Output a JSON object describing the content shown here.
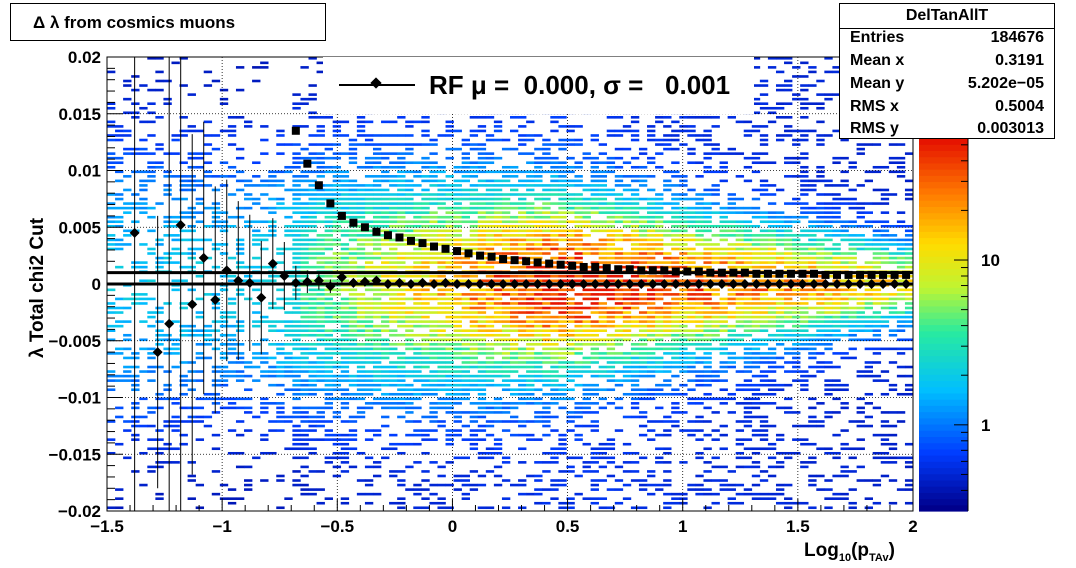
{
  "title": "Δ λ from cosmics muons",
  "stats": {
    "name": "DelTanAllT",
    "rows": [
      {
        "key": "Entries",
        "value": "184676"
      },
      {
        "key": "Mean x",
        "value": "0.3191"
      },
      {
        "key": "Mean y",
        "value": "5.202e−05"
      },
      {
        "key": "RMS x",
        "value": "0.5004"
      },
      {
        "key": "RMS y",
        "value": "0.003013"
      }
    ]
  },
  "legend": {
    "label": "RF μ =  0.000, σ =   0.001"
  },
  "axes": {
    "ytitle": "λ  Total chi2 Cut",
    "xtitle_main": "Log",
    "xtitle_sub1": "10",
    "xtitle_paren": "(p",
    "xtitle_sub2": "TAv",
    "xtitle_close": ")"
  },
  "chart_data": {
    "type": "heatmap",
    "title": "Δ λ from cosmics muons",
    "xlabel": "Log10(pTAv)",
    "ylabel": "λ  Total chi2 Cut",
    "xlim": [
      -1.5,
      2
    ],
    "ylim": [
      -0.02,
      0.02
    ],
    "xticks": [
      -1.5,
      -1,
      -0.5,
      0,
      0.5,
      1,
      1.5,
      2
    ],
    "xtick_labels": [
      "−1.5",
      "−1",
      "−0.5",
      "0",
      "0.5",
      "1",
      "1.5",
      "2"
    ],
    "yticks": [
      -0.02,
      -0.015,
      -0.01,
      -0.005,
      0,
      0.005,
      0.01,
      0.015,
      0.02
    ],
    "ytick_labels": [
      "−0.02",
      "−0.015",
      "−0.01",
      "−0.005",
      "0",
      "0.005",
      "0.01",
      "0.015",
      "0.02"
    ],
    "color_scale": "log",
    "colorbar_ticks": [
      1,
      10
    ],
    "colorbar_labels": [
      "1",
      "10"
    ],
    "grid": true,
    "series": [
      {
        "name": "RF",
        "marker": "diamond",
        "x": [
          -1.38,
          -1.28,
          -1.23,
          -1.18,
          -1.13,
          -1.08,
          -1.03,
          -0.98,
          -0.93,
          -0.88,
          -0.83,
          -0.78,
          -0.73,
          -0.68,
          -0.63,
          -0.58,
          -0.53,
          -0.48,
          -0.43,
          -0.38,
          -0.33,
          -0.28,
          -0.23,
          -0.18,
          -0.13,
          -0.08,
          -0.03,
          0.02,
          0.07,
          0.12,
          0.17,
          0.22,
          0.27,
          0.32,
          0.37,
          0.42,
          0.47,
          0.52,
          0.57,
          0.62,
          0.67,
          0.72,
          0.77,
          0.82,
          0.87,
          0.92,
          0.97,
          1.02,
          1.07,
          1.12,
          1.17,
          1.22,
          1.27,
          1.32,
          1.37,
          1.42,
          1.47,
          1.52,
          1.57,
          1.62,
          1.67,
          1.72,
          1.77,
          1.82,
          1.87,
          1.92,
          1.97
        ],
        "y": [
          0.0045,
          -0.006,
          -0.0035,
          0.0052,
          -0.0018,
          0.0023,
          -0.0014,
          0.0012,
          0.0003,
          0.0001,
          -0.0012,
          0.0018,
          0.0007,
          0.0001,
          0.0002,
          0.0003,
          -0.0002,
          0.0006,
          0.0001,
          0.0002,
          0.0003,
          0.0,
          0.0001,
          0.0,
          0.0001,
          0.0,
          0.0001,
          0.0,
          0.0,
          0.0,
          0.0,
          0.0,
          0.0,
          0.0,
          0.0,
          0.0,
          0.0,
          0.0,
          0.0,
          0.0,
          0.0,
          0.0,
          0.0,
          0.0,
          0.0,
          0.0,
          0.0,
          0.0,
          0.0,
          0.0,
          0.0,
          0.0,
          0.0,
          0.0,
          0.0,
          0.0,
          0.0,
          0.0,
          0.0,
          0.0,
          0.0,
          0.0,
          0.0,
          0.0,
          0.0,
          0.0,
          0.0
        ],
        "yerr": [
          0.025,
          0.012,
          0.035,
          0.03,
          0.015,
          0.012,
          0.01,
          0.008,
          0.007,
          0.006,
          0.005,
          0.004,
          0.003,
          0.0015,
          0.001,
          0.0008,
          0.0006,
          0.0005,
          0.0004,
          0.0003,
          0.0003,
          0.0002,
          0.0002,
          0.0002,
          0.0001,
          0.0001,
          0.0001,
          0.0001,
          0.0001,
          0.0001,
          0.0001,
          0.0001,
          0.0001,
          0.0001,
          0.0001,
          0.0001,
          0.0001,
          0.0001,
          0.0001,
          0.0001,
          0.0001,
          0.0001,
          0.0001,
          0.0001,
          0.0001,
          0.0001,
          0.0001,
          0.0001,
          0.0001,
          0.0001,
          0.0001,
          0.0001,
          0.0001,
          0.0001,
          0.0001,
          0.0001,
          0.0001,
          0.0001,
          0.0001,
          0.0001,
          0.0001,
          0.0001,
          0.0001,
          0.0001,
          0.0001,
          0.0001,
          0.0001
        ]
      },
      {
        "name": "",
        "marker": "square",
        "x": [
          -0.68,
          -0.63,
          -0.58,
          -0.53,
          -0.48,
          -0.43,
          -0.38,
          -0.33,
          -0.28,
          -0.23,
          -0.18,
          -0.13,
          -0.08,
          -0.03,
          0.02,
          0.07,
          0.12,
          0.17,
          0.22,
          0.27,
          0.32,
          0.37,
          0.42,
          0.47,
          0.52,
          0.57,
          0.62,
          0.67,
          0.72,
          0.77,
          0.82,
          0.87,
          0.92,
          0.97,
          1.02,
          1.07,
          1.12,
          1.17,
          1.22,
          1.27,
          1.32,
          1.37,
          1.42,
          1.47,
          1.52,
          1.57,
          1.62,
          1.67,
          1.72,
          1.77,
          1.82,
          1.87,
          1.92,
          1.97
        ],
        "y": [
          0.0135,
          0.0106,
          0.0087,
          0.0071,
          0.006,
          0.0054,
          0.005,
          0.0046,
          0.0043,
          0.0041,
          0.0038,
          0.0036,
          0.0033,
          0.0031,
          0.0029,
          0.0027,
          0.0025,
          0.0024,
          0.0022,
          0.0021,
          0.002,
          0.0019,
          0.0018,
          0.0017,
          0.0016,
          0.0015,
          0.0015,
          0.0014,
          0.0013,
          0.0013,
          0.0012,
          0.0012,
          0.0012,
          0.0011,
          0.0011,
          0.0011,
          0.001,
          0.001,
          0.001,
          0.001,
          0.0009,
          0.0009,
          0.0009,
          0.0009,
          0.0009,
          0.0009,
          0.0008,
          0.0008,
          0.0008,
          0.0008,
          0.0008,
          0.0008,
          0.0008,
          0.0008
        ]
      }
    ],
    "reference_lines": [
      0.001,
      0.0
    ]
  }
}
